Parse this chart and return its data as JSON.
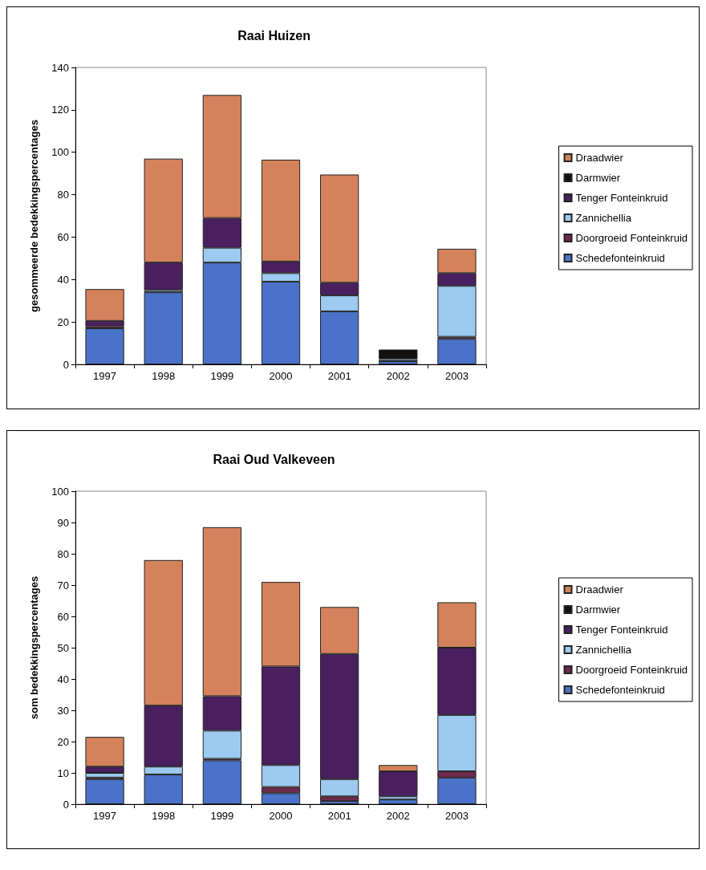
{
  "chart_data": [
    {
      "type": "bar",
      "title": "Raai Huizen",
      "ylabel": "gesommeerde bedekkingspercentages",
      "categories": [
        "1997",
        "1998",
        "1999",
        "2000",
        "2001",
        "2002",
        "2003"
      ],
      "stacked": true,
      "ylim": [
        0,
        140
      ],
      "yticks": [
        0,
        20,
        40,
        60,
        80,
        100,
        120,
        140
      ],
      "grid": false,
      "legend": "right",
      "series": [
        {
          "name": "Schedefonteinkruid",
          "color": "#4a72c8",
          "values": [
            17,
            34,
            48,
            39,
            25,
            1.5,
            12
          ]
        },
        {
          "name": "Doorgroeid Fonteinkruid",
          "color": "#6e2a4c",
          "values": [
            1,
            0,
            0,
            0,
            0,
            0,
            1
          ]
        },
        {
          "name": "Zannichellia",
          "color": "#9ccaf0",
          "values": [
            0,
            1,
            7,
            4,
            7.5,
            1,
            24
          ]
        },
        {
          "name": "Tenger Fonteinkruid",
          "color": "#4a1f60",
          "values": [
            2.5,
            13,
            14,
            5.5,
            6,
            0,
            6
          ]
        },
        {
          "name": "Darmwier",
          "color": "#111111",
          "values": [
            0,
            0,
            0,
            0,
            0,
            4.5,
            0
          ]
        },
        {
          "name": "Draadwier",
          "color": "#d4825c",
          "values": [
            15,
            49,
            58,
            48,
            51,
            0,
            11.5
          ]
        }
      ]
    },
    {
      "type": "bar",
      "title": "Raai Oud Valkeveen",
      "ylabel": "som bedekkingspercentages",
      "categories": [
        "1997",
        "1998",
        "1999",
        "2000",
        "2001",
        "2002",
        "2003"
      ],
      "stacked": true,
      "ylim": [
        0,
        100
      ],
      "yticks": [
        0,
        10,
        20,
        30,
        40,
        50,
        60,
        70,
        80,
        90,
        100
      ],
      "grid": false,
      "legend": "right",
      "series": [
        {
          "name": "Schedefonteinkruid",
          "color": "#4a72c8",
          "values": [
            8,
            9.5,
            14,
            3.5,
            1,
            1.5,
            8.5
          ]
        },
        {
          "name": "Doorgroeid Fonteinkruid",
          "color": "#6e2a4c",
          "values": [
            0.5,
            0,
            0.5,
            2,
            1.5,
            0,
            2
          ]
        },
        {
          "name": "Zannichellia",
          "color": "#9ccaf0",
          "values": [
            1.5,
            2.5,
            9,
            7,
            5.5,
            1,
            18
          ]
        },
        {
          "name": "Tenger Fonteinkruid",
          "color": "#4a1f60",
          "values": [
            2,
            19.5,
            11,
            31.5,
            40,
            8,
            21.5
          ]
        },
        {
          "name": "Darmwier",
          "color": "#111111",
          "values": [
            0,
            0,
            0,
            0,
            0,
            0,
            0
          ]
        },
        {
          "name": "Draadwier",
          "color": "#d4825c",
          "values": [
            9.5,
            46.5,
            54,
            27,
            15,
            2,
            14.5
          ]
        }
      ]
    }
  ]
}
